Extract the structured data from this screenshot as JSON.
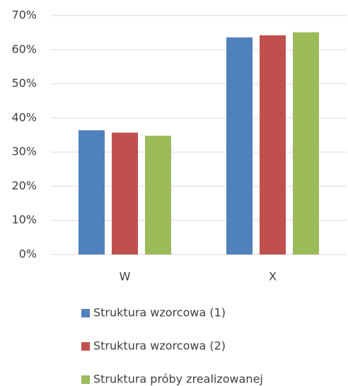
{
  "chart_data": {
    "type": "bar",
    "categories": [
      "W",
      "X"
    ],
    "series": [
      {
        "name": "Struktura wzorcowa (1)",
        "color": "#4f81bd",
        "values": [
          36.4,
          63.6
        ]
      },
      {
        "name": "Struktura wzorcowa (2)",
        "color": "#c0504d",
        "values": [
          35.7,
          64.2
        ]
      },
      {
        "name": "Struktura próby zrealizowanej",
        "color": "#9bbb59",
        "values": [
          34.8,
          65.1
        ]
      }
    ],
    "ylim": [
      0,
      70
    ],
    "yticks": [
      {
        "value": 0,
        "label": "0%"
      },
      {
        "value": 10,
        "label": "10%"
      },
      {
        "value": 20,
        "label": "20%"
      },
      {
        "value": 30,
        "label": "30%"
      },
      {
        "value": 40,
        "label": "40%"
      },
      {
        "value": 50,
        "label": "50%"
      },
      {
        "value": 60,
        "label": "60%"
      },
      {
        "value": 70,
        "label": "70%"
      }
    ],
    "grid": true,
    "legend": "bottom"
  }
}
